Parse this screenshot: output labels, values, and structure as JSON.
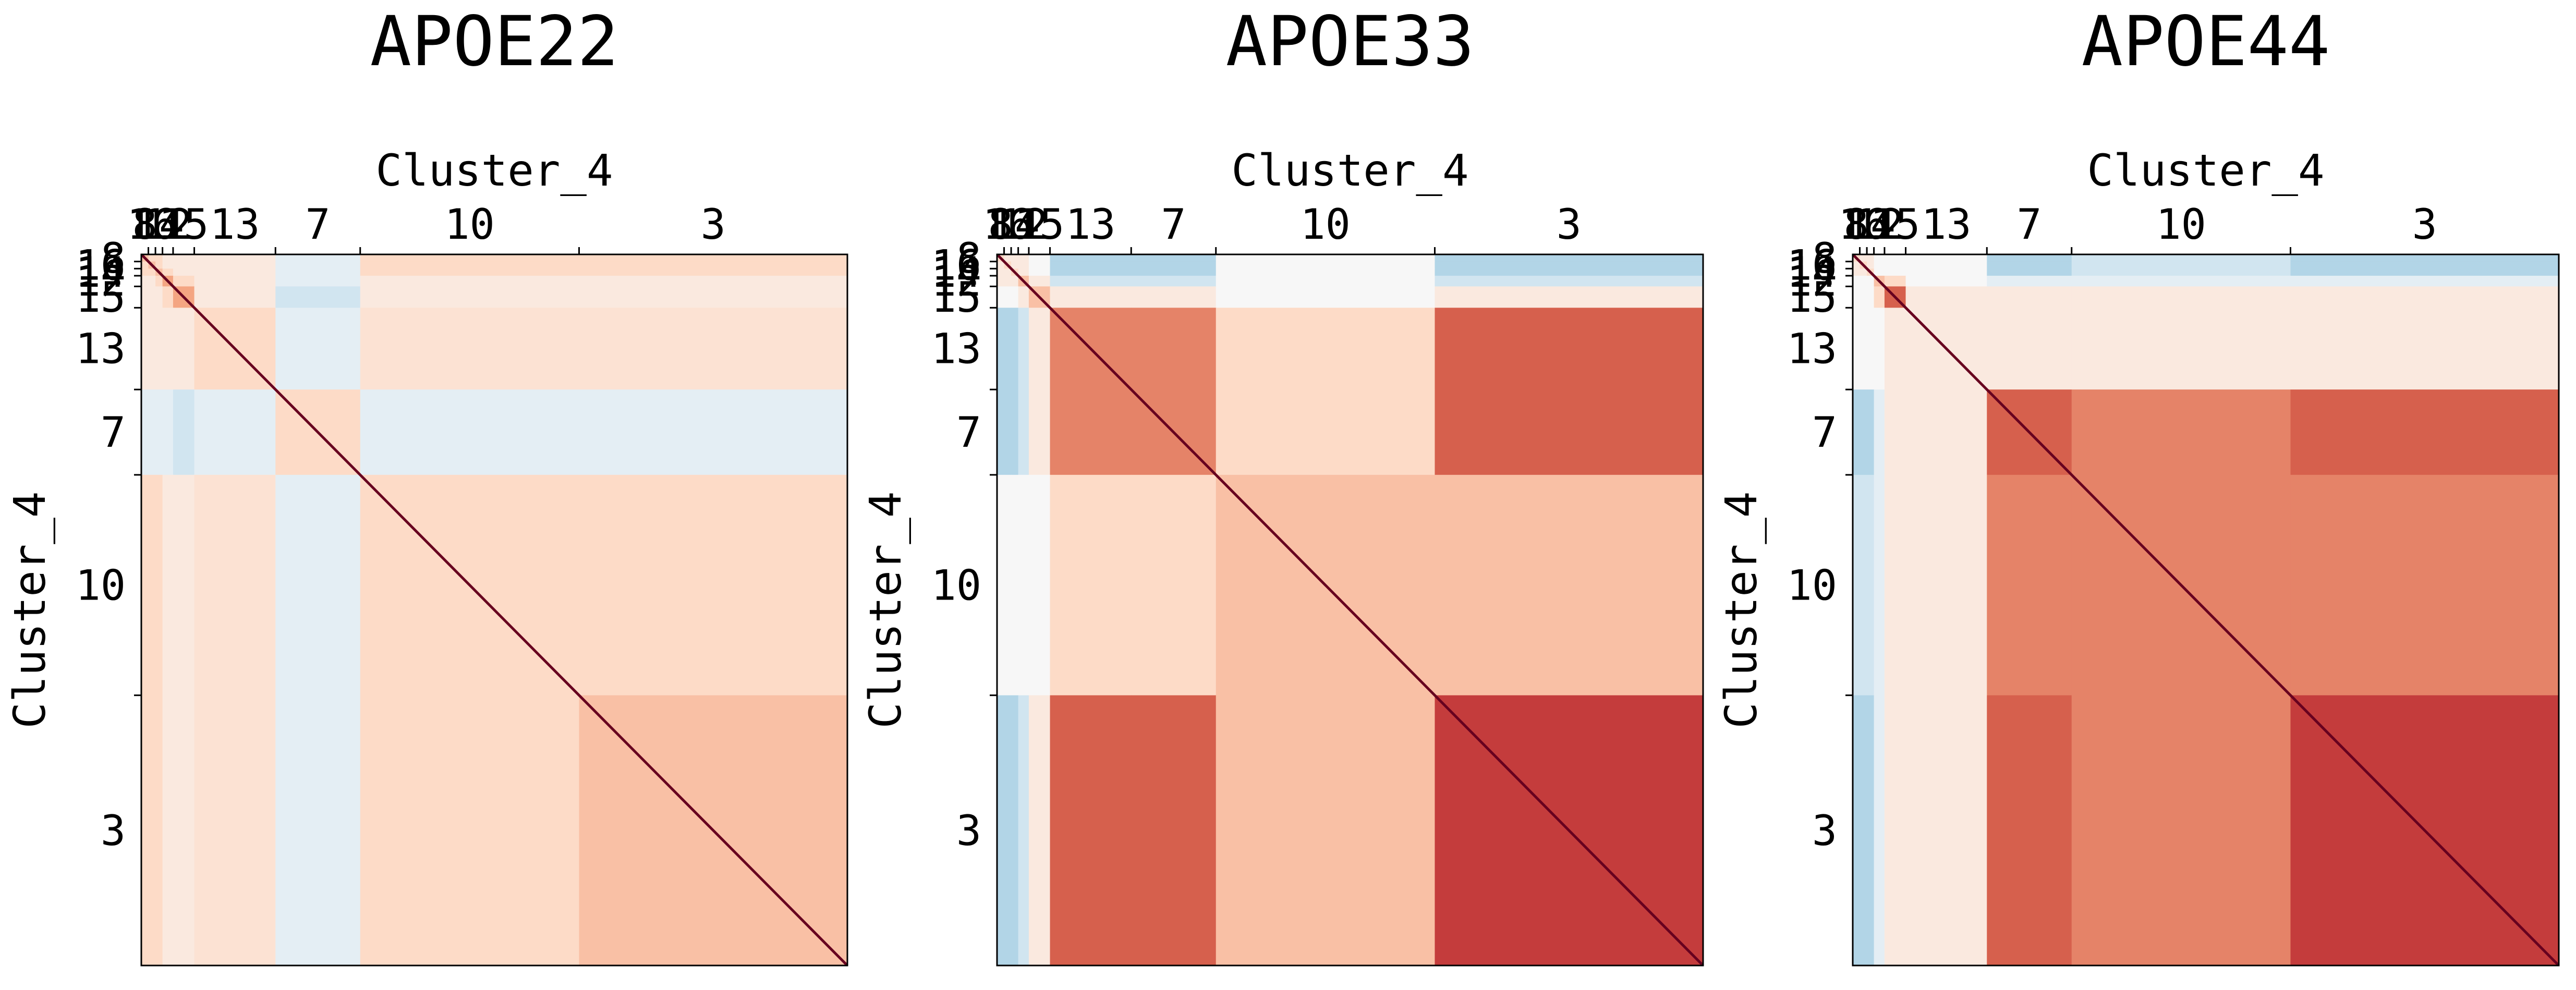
{
  "chart_data": [
    {
      "type": "heatmap",
      "title": "APOE22",
      "xlabel": "Cluster_4",
      "ylabel": "Cluster_4",
      "categories": [
        "8",
        "16",
        "14",
        "12",
        "15",
        "13",
        "7",
        "10",
        "3"
      ],
      "sizes": [
        1,
        1,
        1,
        1.5,
        3,
        11.5,
        12,
        31,
        38
      ],
      "colormap": "RdBu_r",
      "vlim": [
        -1,
        1
      ],
      "diagonal": 1,
      "values": [
        [
          0.3,
          0.2,
          0.2,
          0.1,
          0.1,
          0.1,
          -0.1,
          0.2,
          0.2
        ],
        [
          0.2,
          0.3,
          0.2,
          0.1,
          0.1,
          0.1,
          -0.1,
          0.2,
          0.2
        ],
        [
          0.2,
          0.2,
          0.3,
          0.2,
          0.1,
          0.1,
          -0.1,
          0.2,
          0.2
        ],
        [
          0.1,
          0.1,
          0.2,
          0.4,
          0.2,
          0.1,
          -0.1,
          0.1,
          0.1
        ],
        [
          0.1,
          0.1,
          0.1,
          0.2,
          0.4,
          0.1,
          -0.2,
          0.1,
          0.1
        ],
        [
          0.1,
          0.1,
          0.1,
          0.1,
          0.1,
          0.2,
          -0.1,
          0.15,
          0.15
        ],
        [
          -0.1,
          -0.1,
          -0.1,
          -0.1,
          -0.2,
          -0.1,
          0.2,
          -0.1,
          -0.1
        ],
        [
          0.2,
          0.2,
          0.2,
          0.1,
          0.1,
          0.15,
          -0.1,
          0.2,
          0.2
        ],
        [
          0.2,
          0.2,
          0.2,
          0.1,
          0.1,
          0.15,
          -0.1,
          0.2,
          0.3
        ]
      ]
    },
    {
      "type": "heatmap",
      "title": "APOE33",
      "xlabel": "Cluster_4",
      "ylabel": "Cluster_4",
      "categories": [
        "8",
        "16",
        "14",
        "12",
        "15",
        "13",
        "7",
        "10",
        "3"
      ],
      "sizes": [
        1,
        1,
        1,
        1.5,
        3,
        11.5,
        12,
        31,
        38
      ],
      "colormap": "RdBu_r",
      "vlim": [
        -1,
        1
      ],
      "diagonal": 1,
      "values": [
        [
          0.2,
          0.1,
          0.1,
          0.1,
          0.0,
          -0.3,
          -0.3,
          0.0,
          -0.3
        ],
        [
          0.1,
          0.2,
          0.1,
          0.1,
          0.0,
          -0.3,
          -0.3,
          0.0,
          -0.3
        ],
        [
          0.1,
          0.1,
          0.2,
          0.1,
          0.0,
          -0.3,
          -0.3,
          0.0,
          -0.3
        ],
        [
          0.1,
          0.1,
          0.1,
          0.3,
          0.1,
          -0.2,
          -0.2,
          0.0,
          -0.2
        ],
        [
          0.0,
          0.0,
          0.0,
          0.1,
          0.3,
          0.1,
          0.1,
          0.0,
          0.1
        ],
        [
          -0.3,
          -0.3,
          -0.3,
          -0.2,
          0.1,
          0.5,
          0.5,
          0.2,
          0.6
        ],
        [
          -0.3,
          -0.3,
          -0.3,
          -0.2,
          0.1,
          0.5,
          0.5,
          0.2,
          0.6
        ],
        [
          0.0,
          0.0,
          0.0,
          0.0,
          0.0,
          0.2,
          0.2,
          0.3,
          0.3
        ],
        [
          -0.3,
          -0.3,
          -0.3,
          -0.2,
          0.1,
          0.6,
          0.6,
          0.3,
          0.7
        ]
      ]
    },
    {
      "type": "heatmap",
      "title": "APOE44",
      "xlabel": "Cluster_4",
      "ylabel": "Cluster_4",
      "categories": [
        "8",
        "16",
        "14",
        "12",
        "15",
        "13",
        "7",
        "10",
        "3"
      ],
      "sizes": [
        1,
        1,
        1,
        1.5,
        3,
        11.5,
        12,
        31,
        38
      ],
      "colormap": "RdBu_r",
      "vlim": [
        -1,
        1
      ],
      "diagonal": 1,
      "values": [
        [
          0.2,
          0.1,
          0.1,
          0.0,
          0.0,
          0.0,
          -0.3,
          -0.2,
          -0.3
        ],
        [
          0.1,
          0.2,
          0.1,
          0.0,
          0.0,
          0.0,
          -0.3,
          -0.2,
          -0.3
        ],
        [
          0.1,
          0.1,
          0.2,
          0.0,
          0.0,
          0.0,
          -0.3,
          -0.2,
          -0.3
        ],
        [
          0.0,
          0.0,
          0.0,
          0.3,
          0.2,
          0.0,
          -0.1,
          -0.1,
          -0.1
        ],
        [
          0.0,
          0.0,
          0.0,
          0.2,
          0.6,
          0.1,
          0.1,
          0.1,
          0.1
        ],
        [
          0.0,
          0.0,
          0.0,
          0.0,
          0.1,
          0.1,
          0.1,
          0.1,
          0.1
        ],
        [
          -0.3,
          -0.3,
          -0.3,
          -0.1,
          0.1,
          0.1,
          0.6,
          0.5,
          0.6
        ],
        [
          -0.2,
          -0.2,
          -0.2,
          -0.1,
          0.1,
          0.1,
          0.5,
          0.5,
          0.5
        ],
        [
          -0.3,
          -0.3,
          -0.3,
          -0.1,
          0.1,
          0.1,
          0.6,
          0.5,
          0.7
        ]
      ]
    }
  ]
}
